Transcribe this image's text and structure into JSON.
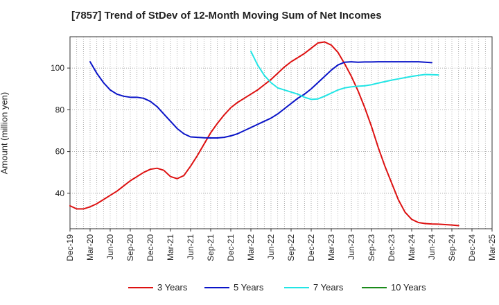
{
  "chart_data": {
    "type": "line",
    "title": "[7857]  Trend of StDev of 12-Month Moving Sum of Net Incomes",
    "ylabel": "Amount (million yen)",
    "xlabel": "",
    "ylim": [
      23,
      115
    ],
    "yticks": [
      40,
      60,
      80,
      100
    ],
    "x_tick_labels": [
      "Dec-19",
      "Mar-20",
      "Jun-20",
      "Sep-20",
      "Dec-20",
      "Mar-21",
      "Jun-21",
      "Sep-21",
      "Dec-21",
      "Mar-22",
      "Jun-22",
      "Sep-22",
      "Dec-22",
      "Mar-23",
      "Jun-23",
      "Sep-23",
      "Dec-23",
      "Mar-24",
      "Jun-24",
      "Sep-24",
      "Dec-24",
      "Mar-25"
    ],
    "grid": true,
    "legend_position": "bottom",
    "series": [
      {
        "name": "3 Years",
        "color": "#dd1111",
        "start": "Dec-19",
        "values": [
          34,
          32.5,
          32.5,
          33.5,
          35,
          37,
          39,
          41,
          43.5,
          46,
          48,
          50,
          51.5,
          52,
          51,
          48,
          47,
          48.5,
          53,
          58,
          63.5,
          69,
          73.5,
          77.5,
          81,
          83.5,
          85.5,
          87.5,
          89.5,
          92,
          94.5,
          97.5,
          100.5,
          103,
          105,
          107,
          109.5,
          112,
          112.5,
          111,
          107.5,
          102,
          96,
          89,
          81,
          72,
          62,
          53,
          45,
          37,
          31,
          27.5,
          26,
          25.5,
          25.3,
          25.2,
          25,
          24.8,
          24.5
        ]
      },
      {
        "name": "5 Years",
        "color": "#0a14c8",
        "start": "Mar-20",
        "values": [
          103,
          97.5,
          93,
          89.5,
          87.5,
          86.5,
          86,
          86,
          85.5,
          84,
          81.5,
          78,
          74.5,
          71,
          68.5,
          67,
          66.8,
          66.6,
          66.5,
          66.5,
          66.8,
          67.5,
          68.5,
          70,
          71.5,
          73,
          74.5,
          76,
          78,
          80.5,
          83,
          85.5,
          87.5,
          90,
          93,
          96,
          99,
          101.5,
          102.8,
          103,
          102.8,
          102.9,
          102.9,
          103,
          103,
          103,
          103,
          103,
          103,
          103,
          102.8,
          102.6
        ]
      },
      {
        "name": "7 Years",
        "color": "#22e5e5",
        "start": "Mar-22",
        "values": [
          108,
          101.5,
          96.5,
          93,
          90.5,
          89.5,
          88.5,
          87.5,
          86,
          85,
          85.2,
          86.5,
          88,
          89.5,
          90.5,
          91,
          91.3,
          91.5,
          92,
          92.8,
          93.5,
          94.2,
          94.8,
          95.4,
          96,
          96.5,
          96.9,
          96.8,
          96.7
        ]
      },
      {
        "name": "10 Years",
        "color": "#1a8a1a",
        "start": "Dec-24",
        "values": []
      }
    ]
  }
}
